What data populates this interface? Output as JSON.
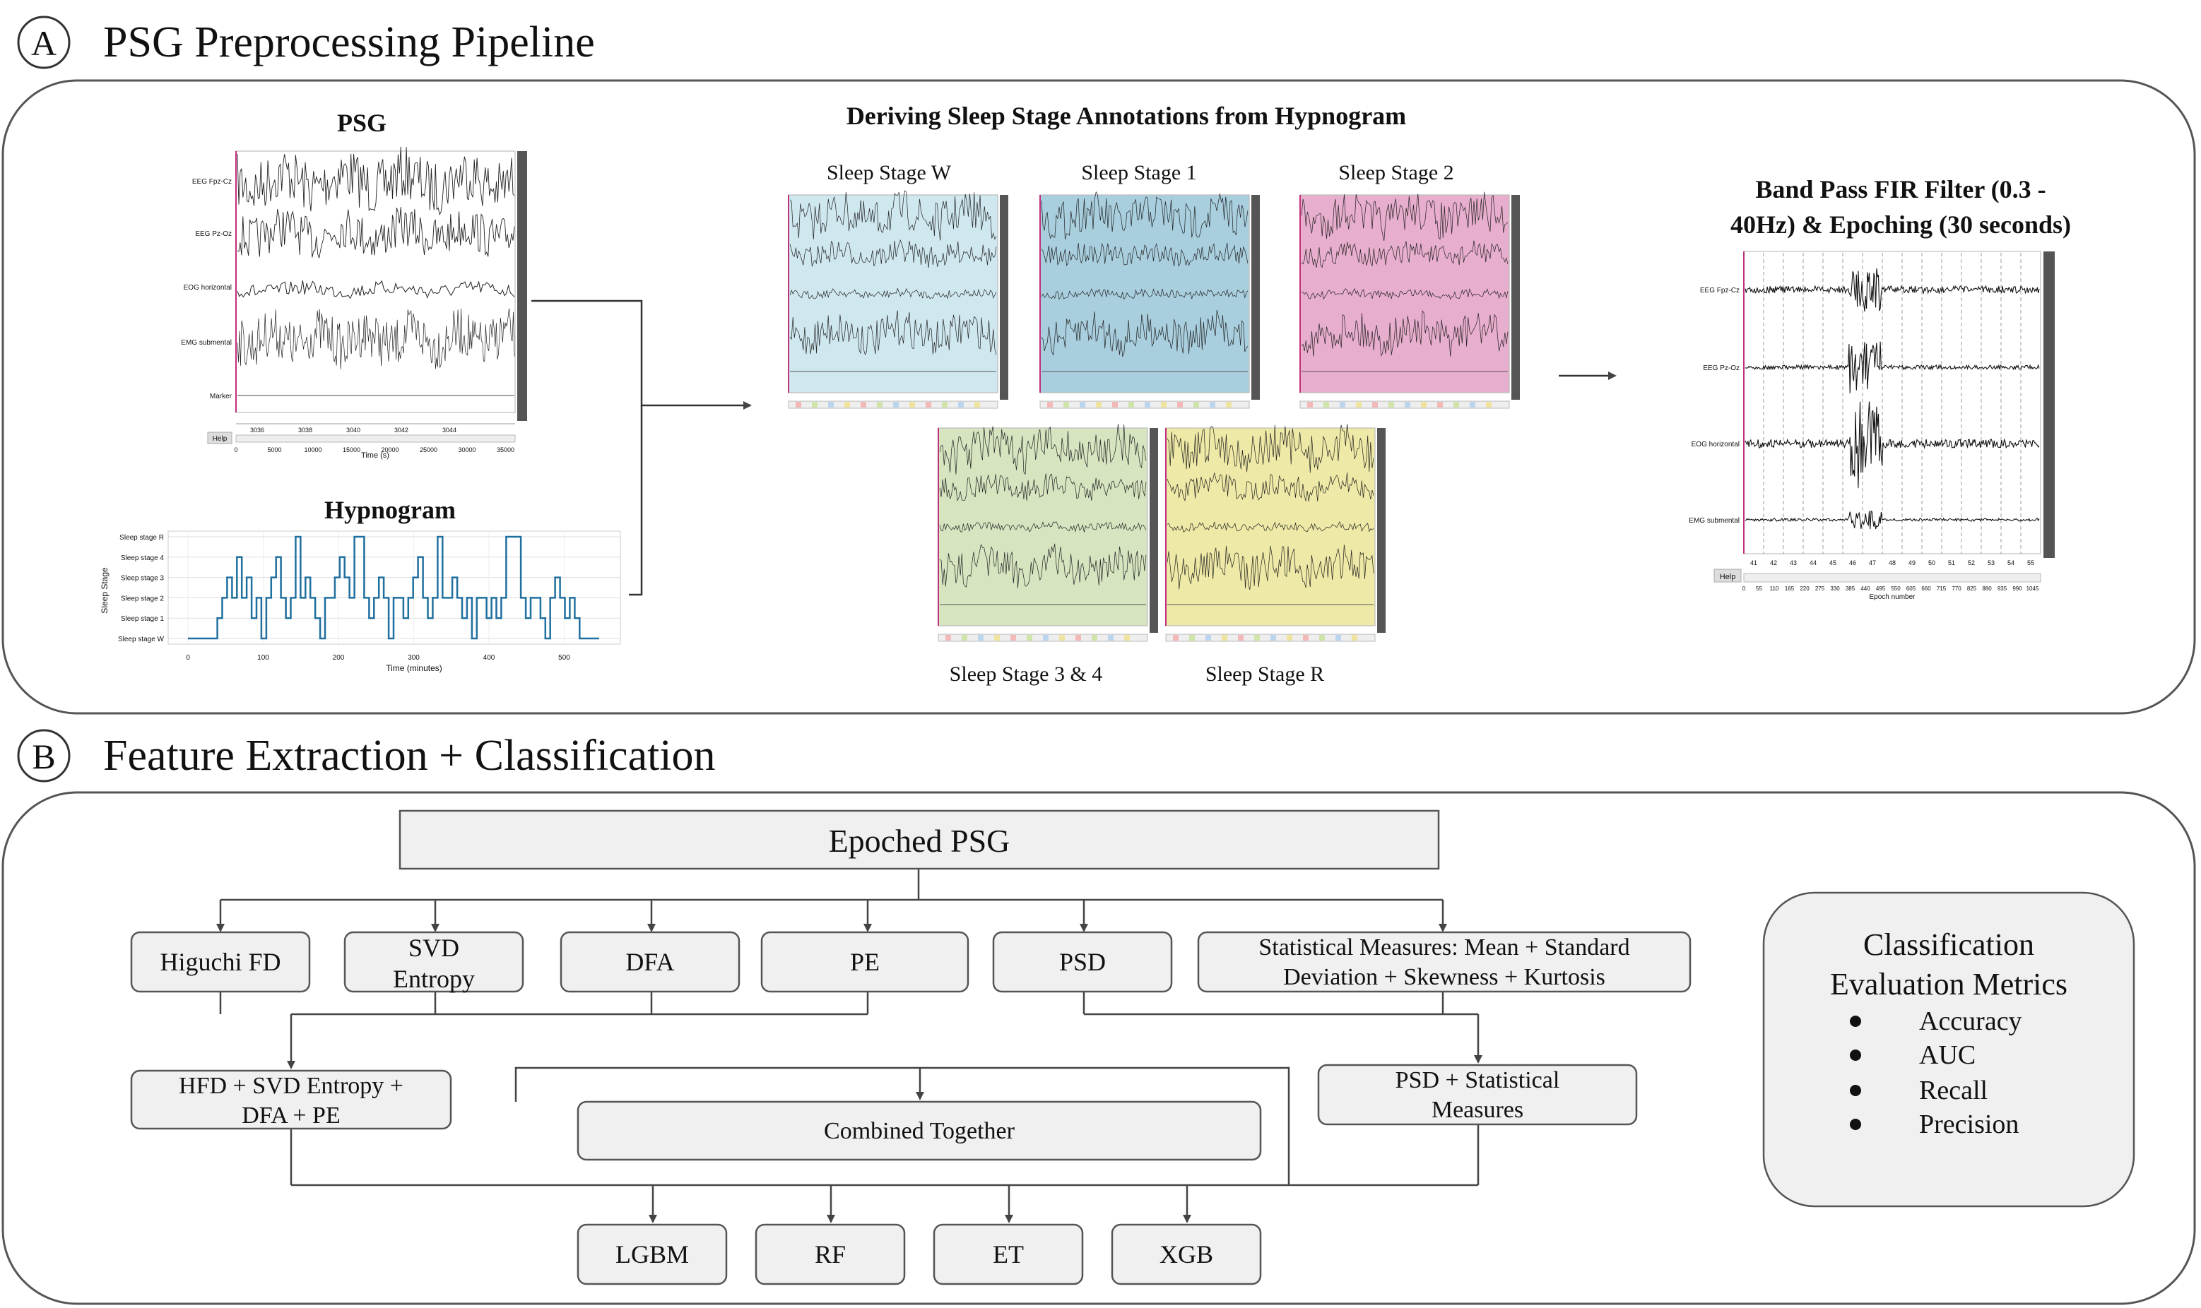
{
  "panel_a": {
    "letter": "A",
    "title": "PSG Preprocessing Pipeline",
    "psg": {
      "title": "PSG",
      "channels": [
        "EEG Fpz-Cz",
        "EEG Pz-Oz",
        "EOG horizontal",
        "EMG submental",
        "Marker"
      ],
      "x_ticks": [
        "3036",
        "3038",
        "3040",
        "3042",
        "3044"
      ],
      "overview_ticks": [
        "0",
        "5000",
        "10000",
        "15000",
        "20000",
        "25000",
        "30000",
        "35000"
      ],
      "xlabel": "Time (s)",
      "help": "Help"
    },
    "hypnogram": {
      "title": "Hypnogram",
      "ylabel": "Sleep Stage",
      "xlabel": "Time (minutes)",
      "stages": [
        "Sleep stage W",
        "Sleep stage 1",
        "Sleep stage 2",
        "Sleep stage 3",
        "Sleep stage 4",
        "Sleep stage R"
      ],
      "x_ticks": [
        "0",
        "100",
        "200",
        "300",
        "400",
        "500"
      ],
      "color": "#1f6f9f"
    },
    "annotation": {
      "title": "Deriving Sleep Stage Annotations from Hypnogram",
      "stages": [
        {
          "label": "Sleep Stage W",
          "color": "#cfe7ef"
        },
        {
          "label": "Sleep Stage 1",
          "color": "#a9cfdf"
        },
        {
          "label": "Sleep Stage 2",
          "color": "#e8aecd"
        },
        {
          "label": "Sleep Stage 3 & 4",
          "color": "#d6e4c0"
        },
        {
          "label": "Sleep Stage R",
          "color": "#eee9a6"
        }
      ]
    },
    "filter": {
      "title_line1": "Band Pass FIR Filter (0.3 -",
      "title_line2": "40Hz) & Epoching (30 seconds)",
      "channels": [
        "EEG Fpz-Cz",
        "EEG Pz-Oz",
        "EOG horizontal",
        "EMG submental"
      ],
      "epoch_ticks": [
        "41",
        "42",
        "43",
        "44",
        "45",
        "46",
        "47",
        "48",
        "49",
        "50",
        "51",
        "52",
        "53",
        "54",
        "55"
      ],
      "overview_ticks": [
        "0",
        "55",
        "110",
        "165",
        "220",
        "275",
        "330",
        "385",
        "440",
        "495",
        "550",
        "605",
        "660",
        "715",
        "770",
        "825",
        "880",
        "935",
        "990",
        "1045"
      ],
      "xlabel": "Epoch number",
      "help": "Help"
    }
  },
  "panel_b": {
    "letter": "B",
    "title": "Feature Extraction + Classification",
    "root": "Epoched PSG",
    "features": {
      "higuchi": "Higuchi FD",
      "svd_1": "SVD",
      "svd_2": "Entropy",
      "dfa": "DFA",
      "pe": "PE",
      "psd": "PSD",
      "stat_1": "Statistical Measures: Mean + Standard",
      "stat_2": "Deviation + Skewness + Kurtosis"
    },
    "groups": {
      "g1_1": "HFD + SVD Entropy +",
      "g1_2": "DFA + PE",
      "combined": "Combined Together",
      "g2_1": "PSD + Statistical",
      "g2_2": "Measures"
    },
    "models": [
      "LGBM",
      "RF",
      "ET",
      "XGB"
    ],
    "metrics": {
      "title_1": "Classification",
      "title_2": "Evaluation Metrics",
      "items": [
        "Accuracy",
        "AUC",
        "Recall",
        "Precision"
      ]
    }
  }
}
